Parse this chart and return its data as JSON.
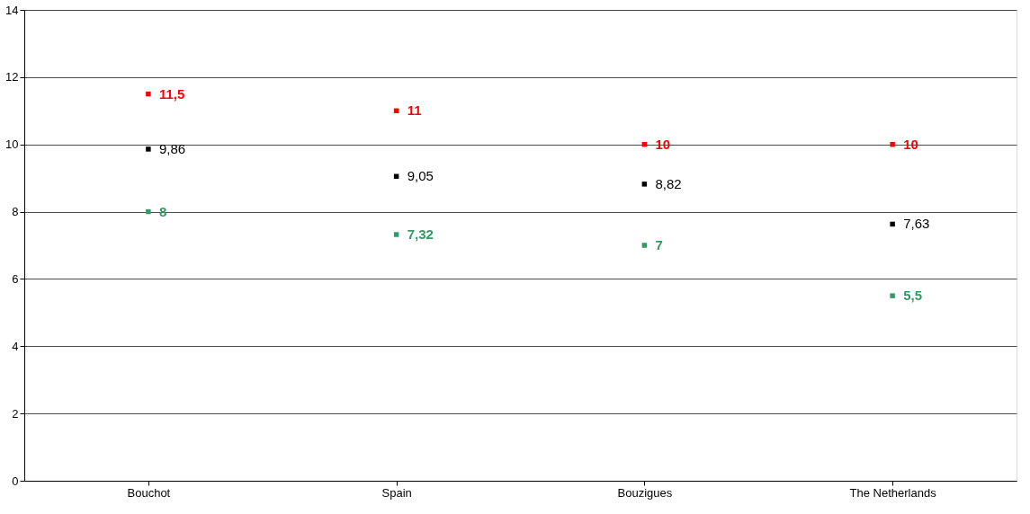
{
  "chart_data": {
    "type": "scatter",
    "categories": [
      "Bouchot",
      "Spain",
      "Bouzigues",
      "The Netherlands"
    ],
    "series": [
      {
        "color": "#ff0000",
        "values": [
          11.5,
          11,
          10,
          10
        ],
        "value_labels": [
          "11,5",
          "11",
          "10",
          "10"
        ]
      },
      {
        "color": "#000000",
        "values": [
          9.86,
          9.05,
          8.82,
          7.63
        ],
        "value_labels": [
          "9,86",
          "9,05",
          "8,82",
          "7,63"
        ]
      },
      {
        "color": "#339966",
        "values": [
          8,
          7.32,
          7,
          5.5
        ],
        "value_labels": [
          "8",
          "7,32",
          "7",
          "5,5"
        ]
      }
    ],
    "ylim": [
      0,
      14
    ],
    "yticks": [
      0,
      2,
      4,
      6,
      8,
      10,
      12,
      14
    ],
    "grid": "y",
    "legend": false,
    "marker": "square"
  }
}
